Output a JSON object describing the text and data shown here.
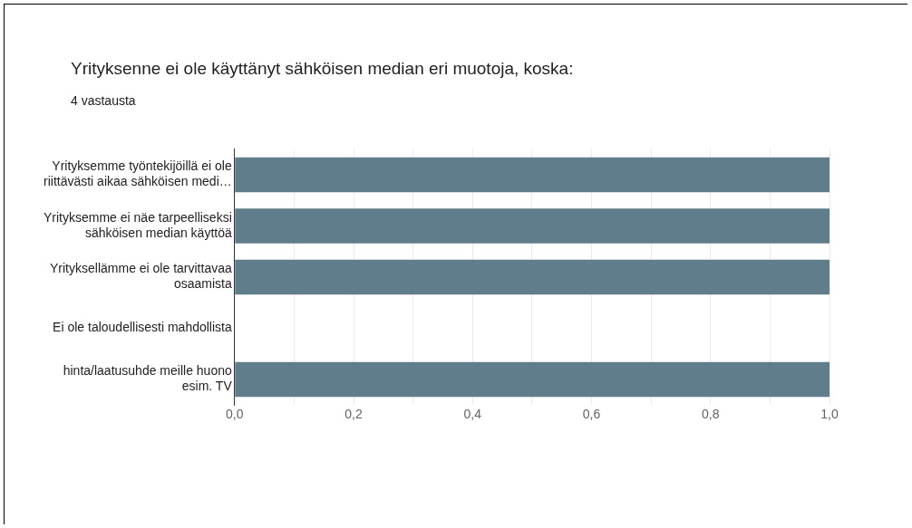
{
  "chart_data": {
    "type": "bar",
    "orientation": "horizontal",
    "title": "Yrityksenne ei ole käyttänyt sähköisen median eri muotoja, koska:",
    "subtitle": "4 vastausta",
    "categories": [
      "Yrityksemme työntekijöillä ei ole riittävästi aikaa sähköisen medi…",
      "Yrityksemme ei näe tarpeelliseksi sähköisen median käyttöä",
      "Yrityksellämme ei ole tarvittavaa osaamista",
      "Ei ole taloudellisesti mahdollista",
      "hinta/laatusuhde meille huono esim. TV"
    ],
    "values": [
      1,
      1,
      1,
      0,
      1
    ],
    "color": "#607d8b",
    "xlim": [
      0,
      1
    ],
    "xticks": [
      {
        "value": 0,
        "label": "0,0"
      },
      {
        "value": 0.1,
        "label": null
      },
      {
        "value": 0.2,
        "label": "0,2"
      },
      {
        "value": 0.3,
        "label": null
      },
      {
        "value": 0.4,
        "label": "0,4"
      },
      {
        "value": 0.5,
        "label": null
      },
      {
        "value": 0.6,
        "label": "0,6"
      },
      {
        "value": 0.7,
        "label": null
      },
      {
        "value": 0.8,
        "label": "0,8"
      },
      {
        "value": 0.9,
        "label": null
      },
      {
        "value": 1,
        "label": "1,0"
      }
    ],
    "grid": "x",
    "legend": false
  }
}
